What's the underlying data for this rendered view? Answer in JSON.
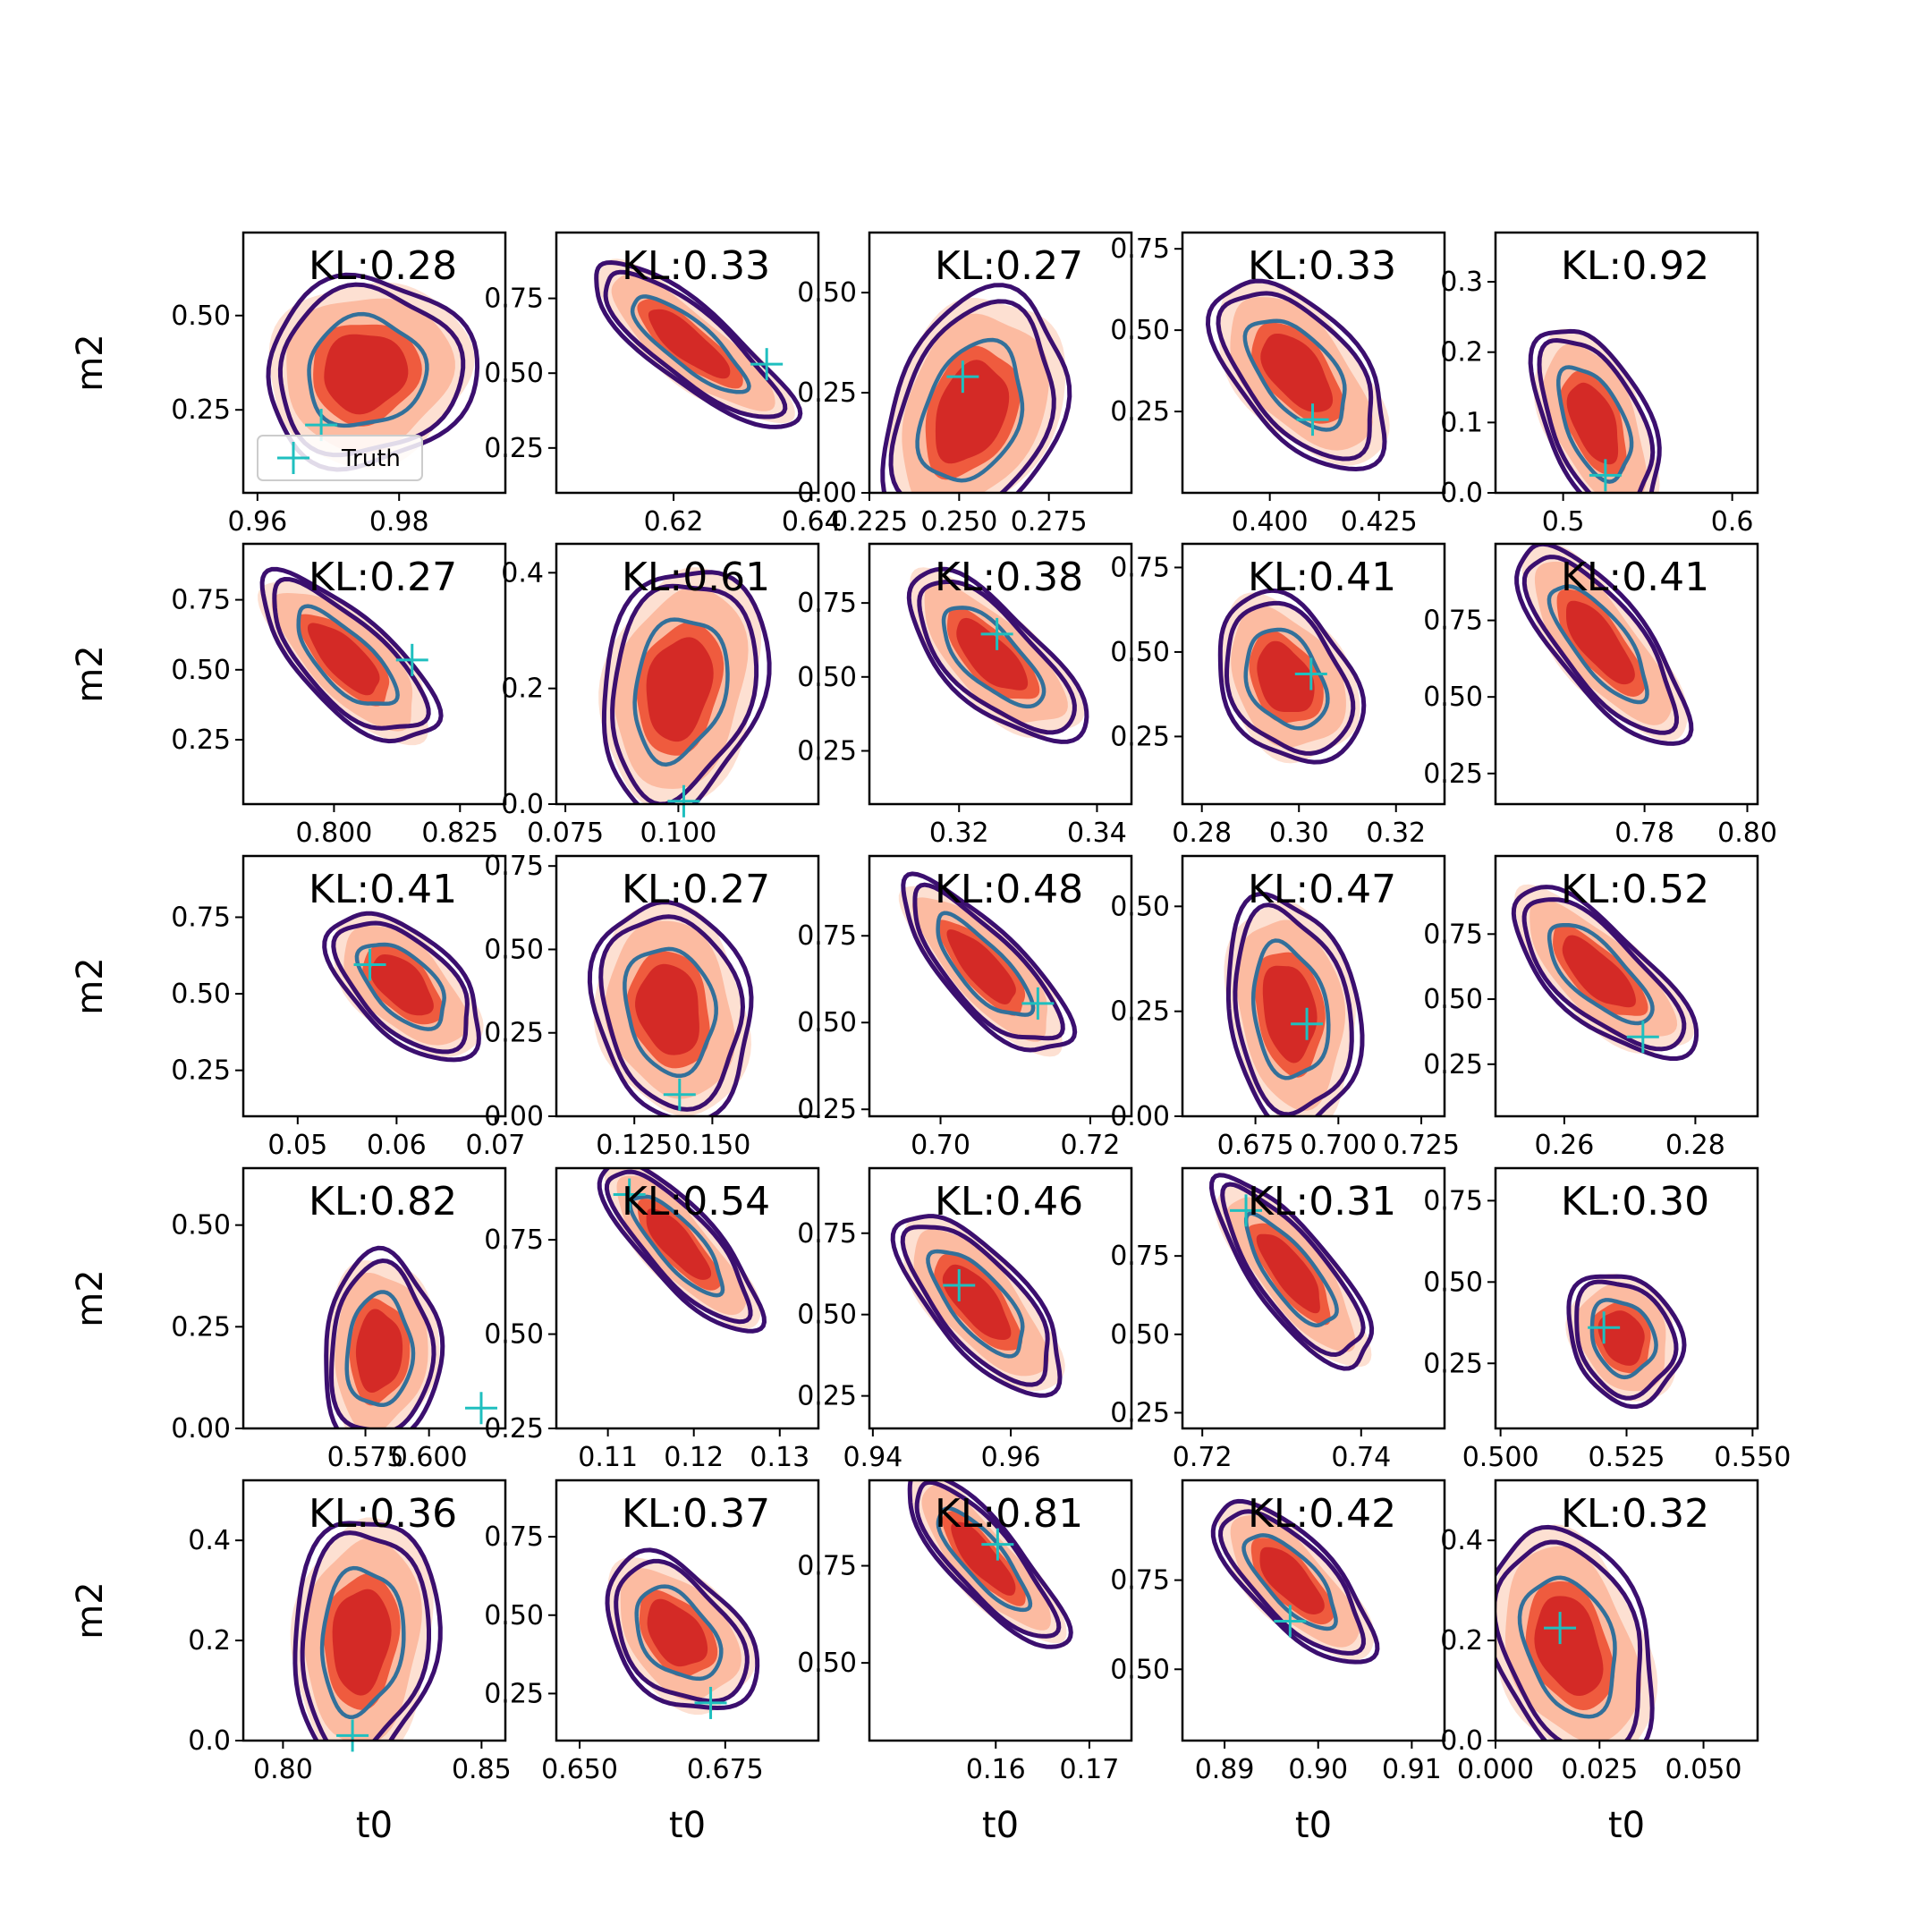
{
  "chart_data": {
    "type": "contour-grid",
    "rows": 5,
    "cols": 5,
    "xlabel": "t0",
    "ylabel": "m2",
    "legend": {
      "label": "Truth",
      "placement": "lower-left of first panel"
    },
    "colors": {
      "fill_levels": [
        "#fde0d2",
        "#fcbba1",
        "#ef5b3e",
        "#d42a26"
      ],
      "outer_contour": "#3b0f6f",
      "inner_contour": "#33709a",
      "truth_marker": "#1fbfbf"
    },
    "panels": [
      {
        "kl": "KL:0.28",
        "xlim": [
          0.958,
          0.995
        ],
        "ylim": [
          0.03,
          0.72
        ],
        "xticks": [
          0.96,
          0.98
        ],
        "xtick_labels": [
          "0.96",
          "0.98"
        ],
        "yticks": [
          0.25,
          0.5
        ],
        "ytick_labels": [
          "0.25",
          "0.50"
        ],
        "center": [
          0.975,
          0.35
        ],
        "spread": [
          0.0055,
          0.1
        ],
        "rho": 0.05,
        "truth": [
          0.969,
          0.21
        ],
        "legend": true
      },
      {
        "kl": "KL:0.33",
        "xlim": [
          0.603,
          0.641
        ],
        "ylim": [
          0.1,
          0.97
        ],
        "xticks": [
          0.62,
          0.64
        ],
        "xtick_labels": [
          "0.62",
          "0.64"
        ],
        "yticks": [
          0.25,
          0.5,
          0.75
        ],
        "ytick_labels": [
          "0.25",
          "0.50",
          "0.75"
        ],
        "center": [
          0.622,
          0.6
        ],
        "spread": [
          0.0055,
          0.11
        ],
        "rho": -0.82,
        "truth": [
          0.6335,
          0.53
        ]
      },
      {
        "kl": "KL:0.27",
        "xlim": [
          0.225,
          0.298
        ],
        "ylim": [
          0.0,
          0.65
        ],
        "xticks": [
          0.225,
          0.25,
          0.275
        ],
        "xtick_labels": [
          "0.225",
          "0.250",
          "0.275"
        ],
        "yticks": [
          0.0,
          0.25,
          0.5
        ],
        "ytick_labels": [
          "0.00",
          "0.25",
          "0.50"
        ],
        "center": [
          0.253,
          0.2
        ],
        "spread": [
          0.0095,
          0.12
        ],
        "rho": 0.3,
        "truth": [
          0.251,
          0.29
        ]
      },
      {
        "kl": "KL:0.33",
        "xlim": [
          0.38,
          0.44
        ],
        "ylim": [
          0.0,
          0.8
        ],
        "xticks": [
          0.4,
          0.425
        ],
        "xtick_labels": [
          "0.400",
          "0.425"
        ],
        "yticks": [
          0.25,
          0.5,
          0.75
        ],
        "ytick_labels": [
          "0.25",
          "0.50",
          "0.75"
        ],
        "center": [
          0.406,
          0.37
        ],
        "spread": [
          0.0075,
          0.115
        ],
        "rho": -0.55,
        "truth": [
          0.4098,
          0.225
        ]
      },
      {
        "kl": "KL:0.92",
        "xlim": [
          0.46,
          0.615
        ],
        "ylim": [
          0.0,
          0.37
        ],
        "xticks": [
          0.5,
          0.6
        ],
        "xtick_labels": [
          "0.5",
          "0.6"
        ],
        "yticks": [
          0.0,
          0.1,
          0.2,
          0.3
        ],
        "ytick_labels": [
          "0.0",
          "0.1",
          "0.2",
          "0.3"
        ],
        "center": [
          0.518,
          0.1
        ],
        "spread": [
          0.014,
          0.055
        ],
        "rho": -0.5,
        "truth": [
          0.525,
          0.025
        ]
      },
      {
        "kl": "KL:0.27",
        "xlim": [
          0.782,
          0.834
        ],
        "ylim": [
          0.02,
          0.95
        ],
        "xticks": [
          0.8,
          0.825
        ],
        "xtick_labels": [
          "0.800",
          "0.825"
        ],
        "yticks": [
          0.25,
          0.5,
          0.75
        ],
        "ytick_labels": [
          "0.25",
          "0.50",
          "0.75"
        ],
        "center": [
          0.802,
          0.54
        ],
        "spread": [
          0.0065,
          0.12
        ],
        "rho": -0.72,
        "truth": [
          0.8155,
          0.535
        ]
      },
      {
        "kl": "KL:0.61",
        "xlim": [
          0.073,
          0.131
        ],
        "ylim": [
          0.0,
          0.45
        ],
        "xticks": [
          0.075,
          0.1
        ],
        "xtick_labels": [
          "0.075",
          "0.100"
        ],
        "yticks": [
          0.0,
          0.2,
          0.4
        ],
        "ytick_labels": [
          "0.0",
          "0.2",
          "0.4"
        ],
        "center": [
          0.1,
          0.2
        ],
        "spread": [
          0.0068,
          0.085
        ],
        "rho": 0.2,
        "truth": [
          0.1012,
          0.005
        ]
      },
      {
        "kl": "KL:0.38",
        "xlim": [
          0.307,
          0.345
        ],
        "ylim": [
          0.07,
          0.95
        ],
        "xticks": [
          0.32,
          0.34
        ],
        "xtick_labels": [
          "0.32",
          "0.34"
        ],
        "yticks": [
          0.25,
          0.5,
          0.75
        ],
        "ytick_labels": [
          "0.25",
          "0.50",
          "0.75"
        ],
        "center": [
          0.3245,
          0.57
        ],
        "spread": [
          0.0048,
          0.115
        ],
        "rho": -0.7,
        "truth": [
          0.3255,
          0.645
        ]
      },
      {
        "kl": "KL:0.41",
        "xlim": [
          0.276,
          0.33
        ],
        "ylim": [
          0.05,
          0.82
        ],
        "xticks": [
          0.28,
          0.3,
          0.32
        ],
        "xtick_labels": [
          "0.28",
          "0.30",
          "0.32"
        ],
        "yticks": [
          0.25,
          0.5,
          0.75
        ],
        "ytick_labels": [
          "0.25",
          "0.50",
          "0.75"
        ],
        "center": [
          0.297,
          0.42
        ],
        "spread": [
          0.0055,
          0.1
        ],
        "rho": -0.3,
        "truth": [
          0.3025,
          0.435
        ]
      },
      {
        "kl": "KL:0.41",
        "xlim": [
          0.751,
          0.802
        ],
        "ylim": [
          0.15,
          1.0
        ],
        "xticks": [
          0.78,
          0.8
        ],
        "xtick_labels": [
          "0.78",
          "0.80"
        ],
        "yticks": [
          0.25,
          0.5,
          0.75
        ],
        "ytick_labels": [
          "0.25",
          "0.50",
          "0.75"
        ],
        "center": [
          0.771,
          0.68
        ],
        "spread": [
          0.0062,
          0.13
        ],
        "rho": -0.75,
        "truth": null
      },
      {
        "kl": "KL:0.41",
        "xlim": [
          0.0445,
          0.071
        ],
        "ylim": [
          0.1,
          0.95
        ],
        "xticks": [
          0.05,
          0.06,
          0.07
        ],
        "xtick_labels": [
          "0.05",
          "0.06",
          "0.07"
        ],
        "yticks": [
          0.25,
          0.5,
          0.75
        ],
        "ytick_labels": [
          "0.25",
          "0.50",
          "0.75"
        ],
        "center": [
          0.0605,
          0.53
        ],
        "spread": [
          0.0029,
          0.095
        ],
        "rho": -0.55,
        "truth": [
          0.0573,
          0.595
        ]
      },
      {
        "kl": "KL:0.27",
        "xlim": [
          0.1,
          0.184
        ],
        "ylim": [
          0.0,
          0.78
        ],
        "xticks": [
          0.125,
          0.15
        ],
        "xtick_labels": [
          "0.125",
          "0.150"
        ],
        "yticks": [
          0.0,
          0.25,
          0.5,
          0.75
        ],
        "ytick_labels": [
          "0.00",
          "0.25",
          "0.50",
          "0.75"
        ],
        "center": [
          0.136,
          0.32
        ],
        "spread": [
          0.0095,
          0.13
        ],
        "rho": -0.15,
        "truth": [
          0.1395,
          0.065
        ]
      },
      {
        "kl": "KL:0.48",
        "xlim": [
          0.6905,
          0.7255
        ],
        "ylim": [
          0.23,
          0.98
        ],
        "xticks": [
          0.7,
          0.72
        ],
        "xtick_labels": [
          "0.70",
          "0.72"
        ],
        "yticks": [
          0.25,
          0.5,
          0.75
        ],
        "ytick_labels": [
          "0.25",
          "0.50",
          "0.75"
        ],
        "center": [
          0.7055,
          0.66
        ],
        "spread": [
          0.0042,
          0.1
        ],
        "rho": -0.78,
        "truth": [
          0.713,
          0.555
        ]
      },
      {
        "kl": "KL:0.47",
        "xlim": [
          0.653,
          0.732
        ],
        "ylim": [
          0.0,
          0.62
        ],
        "xticks": [
          0.675,
          0.7,
          0.725
        ],
        "xtick_labels": [
          "0.675",
          "0.700",
          "0.725"
        ],
        "yticks": [
          0.0,
          0.25,
          0.5
        ],
        "ytick_labels": [
          "0.00",
          "0.25",
          "0.50"
        ],
        "center": [
          0.685,
          0.25
        ],
        "spread": [
          0.0075,
          0.11
        ],
        "rho": -0.2,
        "truth": [
          0.6905,
          0.22
        ]
      },
      {
        "kl": "KL:0.52",
        "xlim": [
          0.2495,
          0.2895
        ],
        "ylim": [
          0.05,
          1.05
        ],
        "xticks": [
          0.26,
          0.28
        ],
        "xtick_labels": [
          "0.26",
          "0.28"
        ],
        "yticks": [
          0.25,
          0.5,
          0.75
        ],
        "ytick_labels": [
          "0.25",
          "0.50",
          "0.75"
        ],
        "center": [
          0.265,
          0.6
        ],
        "spread": [
          0.0052,
          0.13
        ],
        "rho": -0.72,
        "truth": [
          0.272,
          0.355
        ]
      },
      {
        "kl": "KL:0.82",
        "xlim": [
          0.527,
          0.63
        ],
        "ylim": [
          0.0,
          0.64
        ],
        "xticks": [
          0.575,
          0.6
        ],
        "xtick_labels": [
          "0.575",
          "0.600"
        ],
        "yticks": [
          0.0,
          0.25,
          0.5
        ],
        "ytick_labels": [
          "0.00",
          "0.25",
          "0.50"
        ],
        "center": [
          0.58,
          0.19
        ],
        "spread": [
          0.0085,
          0.095
        ],
        "rho": 0.05,
        "truth": [
          0.6205,
          0.05
        ]
      },
      {
        "kl": "KL:0.54",
        "xlim": [
          0.104,
          0.1345
        ],
        "ylim": [
          0.25,
          0.94
        ],
        "xticks": [
          0.11,
          0.12,
          0.13
        ],
        "xtick_labels": [
          "0.11",
          "0.12",
          "0.13"
        ],
        "yticks": [
          0.25,
          0.5,
          0.75
        ],
        "ytick_labels": [
          "0.25",
          "0.50",
          "0.75"
        ],
        "center": [
          0.118,
          0.74
        ],
        "spread": [
          0.0035,
          0.09
        ],
        "rho": -0.8,
        "truth": [
          0.1125,
          0.87
        ]
      },
      {
        "kl": "KL:0.46",
        "xlim": [
          0.9395,
          0.9775
        ],
        "ylim": [
          0.15,
          0.95
        ],
        "xticks": [
          0.94,
          0.96
        ],
        "xtick_labels": [
          "0.94",
          "0.96"
        ],
        "yticks": [
          0.25,
          0.5,
          0.75
        ],
        "ytick_labels": [
          "0.25",
          "0.50",
          "0.75"
        ],
        "center": [
          0.955,
          0.54
        ],
        "spread": [
          0.0045,
          0.11
        ],
        "rho": -0.7,
        "truth": [
          0.9525,
          0.59
        ]
      },
      {
        "kl": "KL:0.31",
        "xlim": [
          0.7175,
          0.7505
        ],
        "ylim": [
          0.2,
          1.03
        ],
        "xticks": [
          0.72,
          0.74
        ],
        "xtick_labels": [
          "0.72",
          "0.74"
        ],
        "yticks": [
          0.25,
          0.5,
          0.75
        ],
        "ytick_labels": [
          "0.25",
          "0.50",
          "0.75"
        ],
        "center": [
          0.731,
          0.7
        ],
        "spread": [
          0.0037,
          0.12
        ],
        "rho": -0.78,
        "truth": [
          0.7255,
          0.895
        ]
      },
      {
        "kl": "KL:0.30",
        "xlim": [
          0.499,
          0.551
        ],
        "ylim": [
          0.05,
          0.85
        ],
        "xticks": [
          0.5,
          0.525,
          0.55
        ],
        "xtick_labels": [
          "0.500",
          "0.525",
          "0.550"
        ],
        "yticks": [
          0.25,
          0.5,
          0.75
        ],
        "ytick_labels": [
          "0.25",
          "0.50",
          "0.75"
        ],
        "center": [
          0.524,
          0.33
        ],
        "spread": [
          0.0042,
          0.08
        ],
        "rho": -0.2,
        "truth": [
          0.5205,
          0.36
        ]
      },
      {
        "kl": "KL:0.36",
        "xlim": [
          0.79,
          0.856
        ],
        "ylim": [
          0.0,
          0.52
        ],
        "xticks": [
          0.8,
          0.85
        ],
        "xtick_labels": [
          "0.80",
          "0.85"
        ],
        "yticks": [
          0.0,
          0.2,
          0.4
        ],
        "ytick_labels": [
          "0.0",
          "0.2",
          "0.4"
        ],
        "center": [
          0.8195,
          0.2
        ],
        "spread": [
          0.0068,
          0.1
        ],
        "rho": 0.1,
        "truth": [
          0.8175,
          0.01
        ]
      },
      {
        "kl": "KL:0.37",
        "xlim": [
          0.646,
          0.691
        ],
        "ylim": [
          0.1,
          0.93
        ],
        "xticks": [
          0.65,
          0.675
        ],
        "xtick_labels": [
          "0.650",
          "0.675"
        ],
        "yticks": [
          0.25,
          0.5,
          0.75
        ],
        "ytick_labels": [
          "0.25",
          "0.50",
          "0.75"
        ],
        "center": [
          0.6665,
          0.44
        ],
        "spread": [
          0.0048,
          0.1
        ],
        "rho": -0.4,
        "truth": [
          0.6725,
          0.22
        ]
      },
      {
        "kl": "KL:0.81",
        "xlim": [
          0.1465,
          0.1745
        ],
        "ylim": [
          0.3,
          0.97
        ],
        "xticks": [
          0.16,
          0.17
        ],
        "xtick_labels": [
          "0.16",
          "0.17"
        ],
        "yticks": [
          0.5,
          0.75
        ],
        "ytick_labels": [
          "0.50",
          "0.75"
        ],
        "center": [
          0.1585,
          0.77
        ],
        "spread": [
          0.0032,
          0.09
        ],
        "rho": -0.82,
        "truth": [
          0.1602,
          0.805
        ]
      },
      {
        "kl": "KL:0.42",
        "xlim": [
          0.8855,
          0.9135
        ],
        "ylim": [
          0.3,
          1.03
        ],
        "xticks": [
          0.89,
          0.9,
          0.91
        ],
        "xtick_labels": [
          "0.89",
          "0.90",
          "0.91"
        ],
        "yticks": [
          0.5,
          0.75
        ],
        "ytick_labels": [
          "0.50",
          "0.75"
        ],
        "center": [
          0.897,
          0.75
        ],
        "spread": [
          0.0032,
          0.09
        ],
        "rho": -0.72,
        "truth": [
          0.897,
          0.635
        ]
      },
      {
        "kl": "KL:0.32",
        "xlim": [
          0.0,
          0.063
        ],
        "ylim": [
          0.0,
          0.52
        ],
        "xticks": [
          0.0,
          0.025,
          0.05
        ],
        "xtick_labels": [
          "0.000",
          "0.025",
          "0.050"
        ],
        "yticks": [
          0.0,
          0.2,
          0.4
        ],
        "ytick_labels": [
          "0.0",
          "0.2",
          "0.4"
        ],
        "center": [
          0.0175,
          0.19
        ],
        "spread": [
          0.0075,
          0.095
        ],
        "rho": -0.3,
        "truth": [
          0.0155,
          0.225
        ]
      }
    ]
  }
}
